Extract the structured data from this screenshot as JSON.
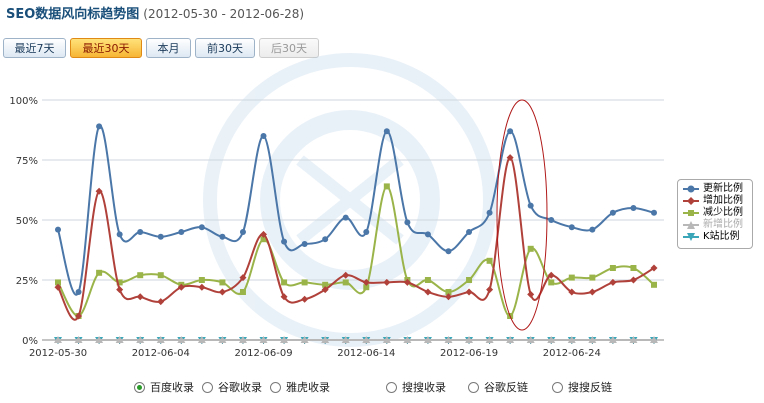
{
  "header": {
    "title": "SEO数据风向标趋势图",
    "date_range": "(2012-05-30 - 2012-06-28)"
  },
  "buttons": [
    {
      "label": "最近7天",
      "state": "normal"
    },
    {
      "label": "最近30天",
      "state": "active"
    },
    {
      "label": "本月",
      "state": "normal"
    },
    {
      "label": "前30天",
      "state": "normal"
    },
    {
      "label": "后30天",
      "state": "disabled"
    }
  ],
  "radios": [
    {
      "label": "百度收录",
      "checked": true
    },
    {
      "label": "谷歌收录",
      "checked": false
    },
    {
      "label": "雅虎收录",
      "checked": false
    },
    {
      "label": "搜搜收录",
      "checked": false
    },
    {
      "label": "谷歌反链",
      "checked": false
    },
    {
      "label": "搜搜反链",
      "checked": false
    }
  ],
  "chart_data": {
    "type": "line",
    "title": "",
    "xlabel": "",
    "ylabel": "",
    "x": [
      "2012-05-30",
      "2012-05-31",
      "2012-06-01",
      "2012-06-02",
      "2012-06-03",
      "2012-06-04",
      "2012-06-05",
      "2012-06-06",
      "2012-06-07",
      "2012-06-08",
      "2012-06-09",
      "2012-06-10",
      "2012-06-11",
      "2012-06-12",
      "2012-06-13",
      "2012-06-14",
      "2012-06-15",
      "2012-06-16",
      "2012-06-17",
      "2012-06-18",
      "2012-06-19",
      "2012-06-20",
      "2012-06-21",
      "2012-06-22",
      "2012-06-23",
      "2012-06-24",
      "2012-06-25",
      "2012-06-26",
      "2012-06-27",
      "2012-06-28"
    ],
    "x_tick_labels": [
      "2012-05-30",
      "2012-06-04",
      "2012-06-09",
      "2012-06-14",
      "2012-06-19",
      "2012-06-24"
    ],
    "y_tick_labels": [
      "0%",
      "25%",
      "50%",
      "75%",
      "100%"
    ],
    "ylim": [
      0,
      100
    ],
    "grid": true,
    "legend_position": "right",
    "series": [
      {
        "name": "更新比例",
        "color": "#4a76a8",
        "marker": "circle",
        "values": [
          46,
          20,
          89,
          44,
          45,
          43,
          45,
          47,
          43,
          45,
          85,
          41,
          40,
          42,
          51,
          45,
          87,
          49,
          44,
          37,
          45,
          53,
          87,
          56,
          50,
          47,
          46,
          53,
          55,
          53
        ]
      },
      {
        "name": "增加比例",
        "color": "#b0403a",
        "marker": "diamond",
        "values": [
          22,
          10,
          62,
          21,
          18,
          16,
          22,
          22,
          20,
          26,
          44,
          18,
          17,
          21,
          27,
          24,
          24,
          24,
          20,
          18,
          20,
          21,
          76,
          19,
          27,
          20,
          20,
          24,
          25,
          30
        ]
      },
      {
        "name": "减少比例",
        "color": "#9ab44a",
        "marker": "square",
        "values": [
          24,
          10,
          28,
          24,
          27,
          27,
          23,
          25,
          24,
          20,
          42,
          24,
          24,
          23,
          24,
          22,
          64,
          25,
          25,
          20,
          25,
          33,
          10,
          38,
          24,
          26,
          26,
          30,
          30,
          23
        ]
      },
      {
        "name": "新增比例",
        "color": "#b8b8b8",
        "marker": "triangle",
        "values": [
          0,
          0,
          0,
          0,
          0,
          0,
          0,
          0,
          0,
          0,
          0,
          0,
          0,
          0,
          0,
          0,
          0,
          0,
          0,
          0,
          0,
          0,
          0,
          0,
          0,
          0,
          0,
          0,
          0,
          0
        ]
      },
      {
        "name": "K站比例",
        "color": "#3aa6b8",
        "marker": "triangle-down",
        "values": [
          0,
          0,
          0,
          0,
          0,
          0,
          0,
          0,
          0,
          0,
          0,
          0,
          0,
          0,
          0,
          0,
          0,
          0,
          0,
          0,
          0,
          0,
          0,
          0,
          0,
          0,
          0,
          0,
          0,
          0
        ]
      }
    ]
  }
}
